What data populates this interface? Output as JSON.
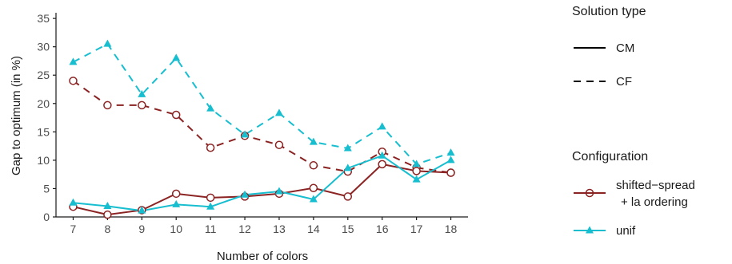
{
  "chart_data": {
    "type": "line",
    "xlabel": "Number of colors",
    "ylabel": "Gap to optimum (in %)",
    "x": [
      7,
      8,
      9,
      10,
      11,
      12,
      13,
      14,
      15,
      16,
      17,
      18
    ],
    "xlim": [
      6.5,
      18.5
    ],
    "ylim": [
      0,
      36
    ],
    "yticks": [
      0,
      5,
      10,
      15,
      20,
      25,
      30,
      35
    ],
    "grid": false,
    "legend_position": "right",
    "colors": {
      "shifted": "#8b2323",
      "unif": "#17becf",
      "axis": "#1a1a1a"
    },
    "legend": {
      "solution_title": "Solution type",
      "solution_items": [
        {
          "label": "CM",
          "dash": "solid"
        },
        {
          "label": "CF",
          "dash": "dashed"
        }
      ],
      "config_title": "Configuration",
      "config_items": [
        {
          "label_line1": "shifted−spread",
          "label_line2": "+ la ordering",
          "marker": "circle-open"
        },
        {
          "label_line1": "unif",
          "label_line2": "",
          "marker": "triangle-filled"
        }
      ]
    },
    "series": [
      {
        "config": "shifted−spread + la ordering",
        "solution": "CF",
        "values": [
          24.0,
          19.7,
          19.7,
          18.0,
          12.2,
          14.3,
          12.7,
          9.1,
          8.0,
          11.5,
          8.7,
          7.8
        ]
      },
      {
        "config": "unif",
        "solution": "CF",
        "values": [
          27.3,
          30.5,
          21.6,
          28.0,
          19.1,
          14.5,
          18.3,
          13.2,
          12.1,
          15.9,
          9.3,
          11.3
        ]
      },
      {
        "config": "shifted−spread + la ordering",
        "solution": "CM",
        "values": [
          1.8,
          0.4,
          1.2,
          4.1,
          3.4,
          3.6,
          4.1,
          5.1,
          3.6,
          9.3,
          8.1,
          7.8
        ]
      },
      {
        "config": "unif",
        "solution": "CM",
        "values": [
          2.5,
          1.9,
          1.1,
          2.2,
          1.8,
          3.9,
          4.5,
          3.1,
          8.6,
          10.8,
          6.6,
          10.0
        ]
      }
    ]
  }
}
